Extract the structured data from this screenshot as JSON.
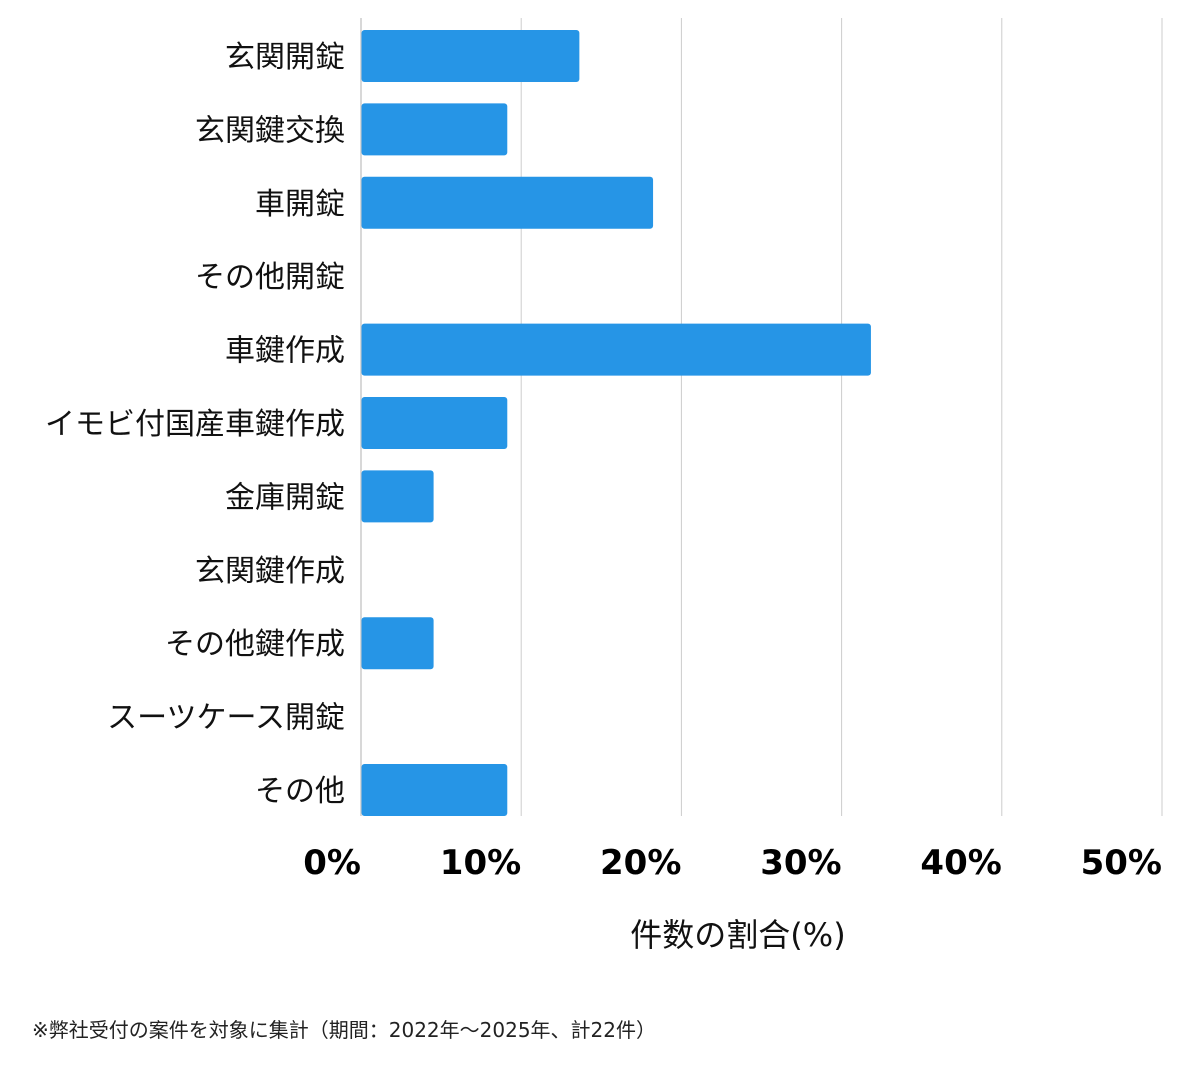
{
  "chart_data": {
    "type": "bar",
    "orientation": "horizontal",
    "categories": [
      "玄関開錠",
      "玄関鍵交換",
      "車開錠",
      "その他開錠",
      "車鍵作成",
      "イモビ付国産車鍵作成",
      "金庫開錠",
      "玄関鍵作成",
      "その他鍵作成",
      "スーツケース開錠",
      "その他"
    ],
    "values": [
      13.6,
      9.1,
      18.2,
      0,
      31.8,
      9.1,
      4.5,
      0,
      4.5,
      0,
      9.1
    ],
    "xlim": [
      0,
      50
    ],
    "xticks": [
      "0%",
      "10%",
      "20%",
      "30%",
      "40%",
      "50%"
    ],
    "xlabel": "件数の割合(%)",
    "grid": true,
    "bar_color": "#2695e6",
    "grid_color": "#cccccc"
  },
  "footnote": "※弊社受付の案件を対象に集計（期間：2022年〜2025年、計22件）"
}
